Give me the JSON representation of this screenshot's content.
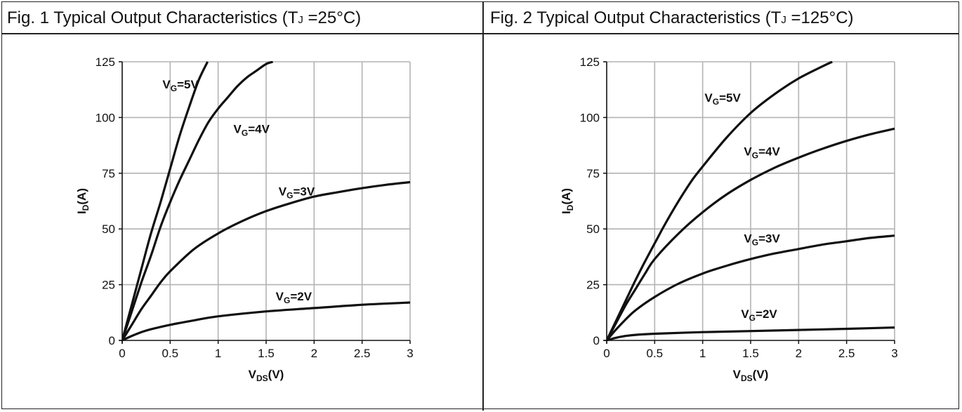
{
  "figures": [
    {
      "title_prefix": "Fig. 1   Typical Output Characteristics (T",
      "title_sub": "J",
      "title_suffix": " =25°C)"
    },
    {
      "title_prefix": "Fig. 2   Typical Output Characteristics (T",
      "title_sub": "J",
      "title_suffix": " =125°C)"
    }
  ],
  "chart_data": [
    {
      "type": "line",
      "title": "Fig. 1 Typical Output Characteristics (TJ =25°C)",
      "xlabel": "VDS(V)",
      "ylabel": "ID(A)",
      "xlim": [
        0,
        3
      ],
      "ylim": [
        0,
        125
      ],
      "xticks": [
        "0",
        "0.5",
        "1",
        "1.5",
        "2",
        "2.5",
        "3"
      ],
      "yticks": [
        "0",
        "25",
        "50",
        "75",
        "100",
        "125"
      ],
      "grid": true,
      "series": [
        {
          "name": "VG=5V",
          "x": [
            0,
            0.1,
            0.2,
            0.3,
            0.4,
            0.5,
            0.6,
            0.7,
            0.8,
            0.89
          ],
          "y": [
            0,
            16,
            32,
            48,
            62,
            77,
            92,
            105,
            117,
            125
          ]
        },
        {
          "name": "VG=4V",
          "x": [
            0,
            0.1,
            0.2,
            0.3,
            0.4,
            0.5,
            0.6,
            0.7,
            0.8,
            0.9,
            1.0,
            1.1,
            1.2,
            1.3,
            1.4,
            1.5,
            1.57
          ],
          "y": [
            0,
            13,
            26,
            38,
            51,
            62,
            72,
            81,
            90,
            98,
            104,
            109,
            114,
            118,
            121,
            124,
            125
          ]
        },
        {
          "name": "VG=3V",
          "x": [
            0,
            0.1,
            0.2,
            0.3,
            0.4,
            0.5,
            0.75,
            1.0,
            1.25,
            1.5,
            1.75,
            2.0,
            2.25,
            2.5,
            2.75,
            3.0
          ],
          "y": [
            0,
            7,
            14,
            20,
            26,
            31,
            41,
            48,
            53.5,
            58,
            61.5,
            64.5,
            66.5,
            68.3,
            69.8,
            71
          ]
        },
        {
          "name": "VG=2V",
          "x": [
            0,
            0.1,
            0.2,
            0.3,
            0.5,
            0.75,
            1.0,
            1.5,
            2.0,
            2.5,
            3.0
          ],
          "y": [
            0,
            2,
            3.7,
            5,
            7,
            9,
            10.8,
            13,
            14.5,
            16,
            17
          ]
        }
      ],
      "labels": [
        {
          "name": "V",
          "sub": "G",
          "rest": "=5V",
          "x": 0.42,
          "y": 113
        },
        {
          "name": "V",
          "sub": "G",
          "rest": "=4V",
          "x": 1.16,
          "y": 93
        },
        {
          "name": "V",
          "sub": "G",
          "rest": "=3V",
          "x": 1.63,
          "y": 65
        },
        {
          "name": "V",
          "sub": "G",
          "rest": "=2V",
          "x": 1.6,
          "y": 18
        }
      ]
    },
    {
      "type": "line",
      "title": "Fig. 2 Typical Output Characteristics (TJ =125°C)",
      "xlabel": "VDS(V)",
      "ylabel": "ID(A)",
      "xlim": [
        0,
        3
      ],
      "ylim": [
        0,
        125
      ],
      "xticks": [
        "0",
        "0.5",
        "1",
        "1.5",
        "2",
        "2.5",
        "3"
      ],
      "yticks": [
        "0",
        "25",
        "50",
        "75",
        "100",
        "125"
      ],
      "grid": true,
      "series": [
        {
          "name": "VG=5V",
          "x": [
            0,
            0.1,
            0.2,
            0.3,
            0.4,
            0.5,
            0.6,
            0.7,
            0.8,
            0.9,
            1.0,
            1.25,
            1.5,
            1.75,
            2.0,
            2.25,
            2.35
          ],
          "y": [
            0,
            9,
            18,
            27,
            35.5,
            43.5,
            51.5,
            59,
            66,
            72.5,
            78,
            91,
            102,
            110.5,
            117.5,
            123,
            125
          ]
        },
        {
          "name": "VG=4V",
          "x": [
            0,
            0.1,
            0.2,
            0.3,
            0.4,
            0.5,
            0.75,
            1.0,
            1.25,
            1.5,
            1.75,
            2.0,
            2.25,
            2.5,
            2.75,
            3.0
          ],
          "y": [
            0,
            8,
            16,
            23,
            30,
            36.5,
            48,
            57.5,
            65.5,
            72,
            77.5,
            82,
            86,
            89.5,
            92.5,
            95
          ]
        },
        {
          "name": "VG=3V",
          "x": [
            0,
            0.1,
            0.2,
            0.3,
            0.5,
            0.75,
            1.0,
            1.25,
            1.5,
            1.75,
            2.0,
            2.25,
            2.5,
            2.75,
            3.0
          ],
          "y": [
            0,
            5,
            9.5,
            13.5,
            19.5,
            25.5,
            30,
            33.5,
            36.5,
            39,
            41,
            43,
            44.5,
            46,
            47
          ]
        },
        {
          "name": "VG=2V",
          "x": [
            0,
            0.1,
            0.2,
            0.3,
            0.5,
            1.0,
            1.5,
            2.0,
            2.5,
            3.0
          ],
          "y": [
            0,
            1.2,
            2,
            2.5,
            3,
            3.7,
            4.2,
            4.7,
            5.2,
            5.8
          ]
        }
      ],
      "labels": [
        {
          "name": "V",
          "sub": "G",
          "rest": "=5V",
          "x": 1.02,
          "y": 107
        },
        {
          "name": "V",
          "sub": "G",
          "rest": "=4V",
          "x": 1.43,
          "y": 83
        },
        {
          "name": "V",
          "sub": "G",
          "rest": "=3V",
          "x": 1.43,
          "y": 44
        },
        {
          "name": "V",
          "sub": "G",
          "rest": "=2V",
          "x": 1.4,
          "y": 10
        }
      ]
    }
  ]
}
